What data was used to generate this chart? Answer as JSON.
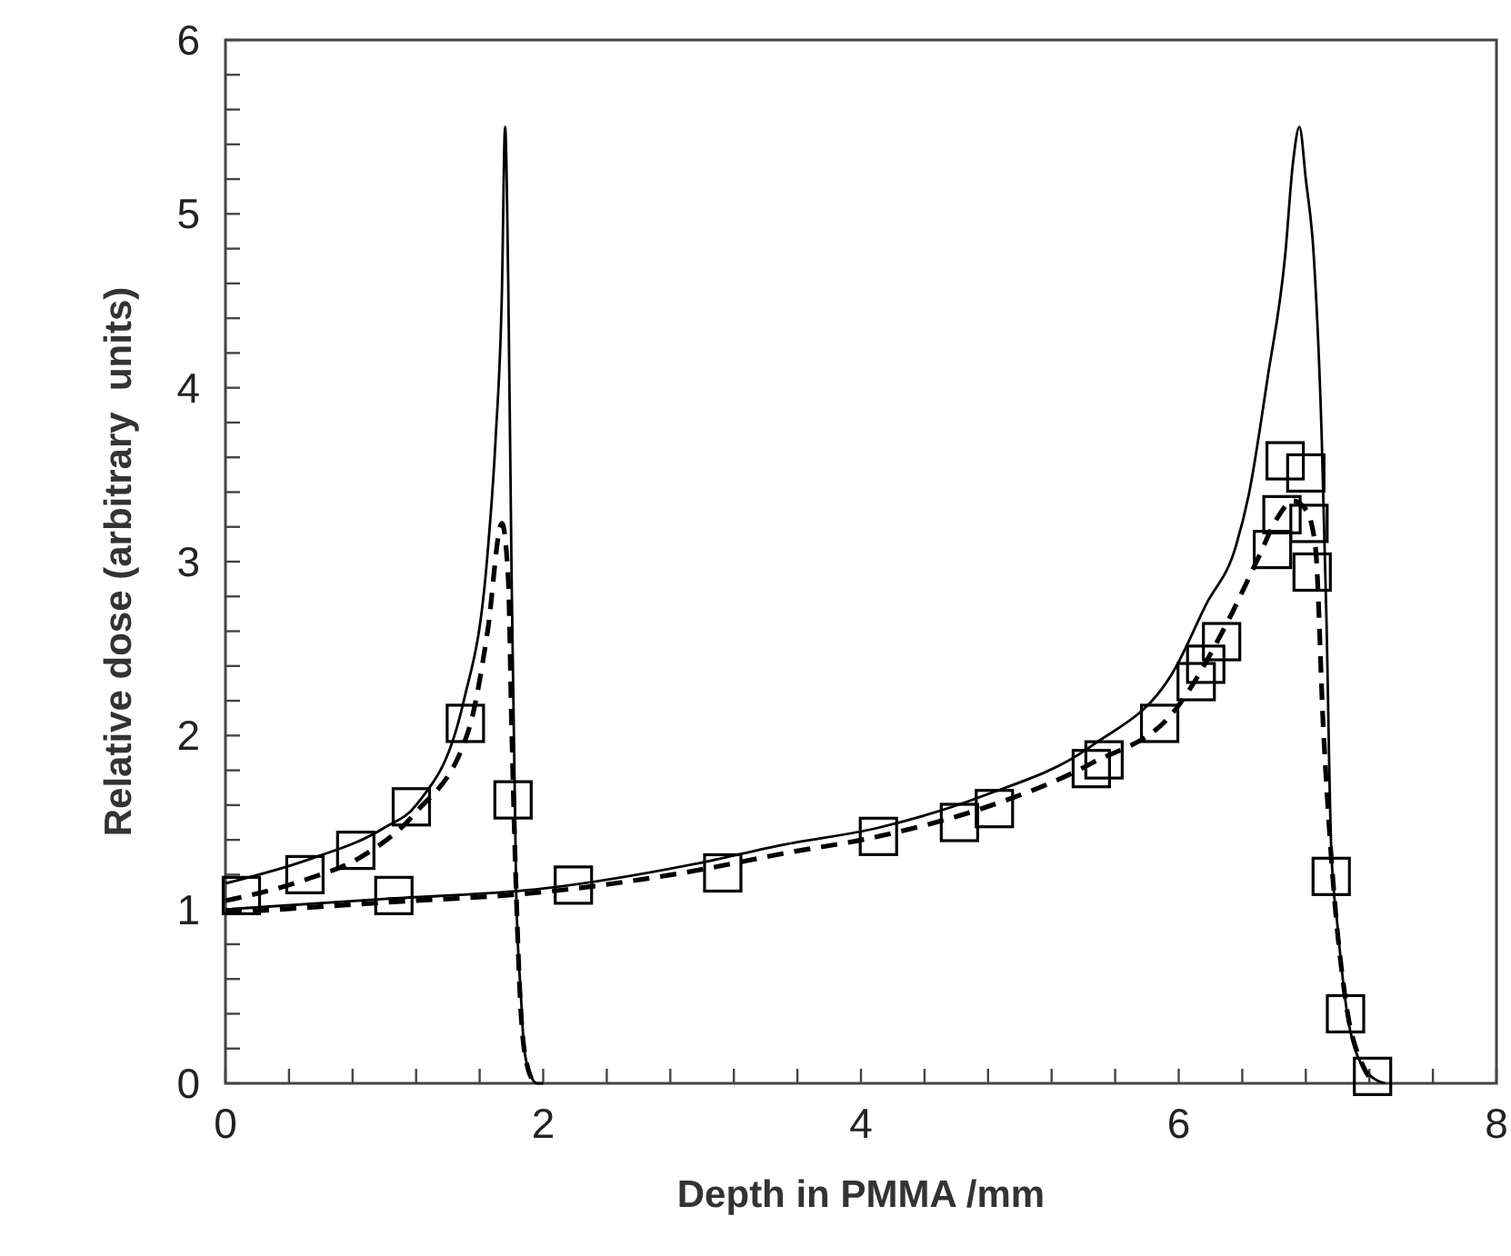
{
  "chart_data": {
    "type": "line",
    "xlabel": "Depth in PMMA /mm",
    "ylabel": "Relative dose (arbitrary  units)",
    "xlim": [
      0,
      8
    ],
    "ylim": [
      0,
      6
    ],
    "xticks": [
      0,
      {
        "value": 0.4,
        "label": null
      },
      {
        "value": 0.8,
        "label": null
      },
      {
        "value": 1.2,
        "label": null
      },
      {
        "value": 1.6,
        "label": null
      },
      2,
      {
        "value": 2.4,
        "label": null
      },
      {
        "value": 2.8,
        "label": null
      },
      {
        "value": 3.2,
        "label": null
      },
      {
        "value": 3.6,
        "label": null
      },
      4,
      {
        "value": 4.4,
        "label": null
      },
      {
        "value": 4.8,
        "label": null
      },
      {
        "value": 5.2,
        "label": null
      },
      {
        "value": 5.6,
        "label": null
      },
      6,
      {
        "value": 6.4,
        "label": null
      },
      {
        "value": 6.8,
        "label": null
      },
      {
        "value": 7.2,
        "label": null
      },
      {
        "value": 7.6,
        "label": null
      },
      8
    ],
    "yticks": [
      0,
      {
        "value": 0.2,
        "label": null
      },
      {
        "value": 0.4,
        "label": null
      },
      {
        "value": 0.6,
        "label": null
      },
      {
        "value": 0.8,
        "label": null
      },
      1,
      {
        "value": 1.2,
        "label": null
      },
      {
        "value": 1.4,
        "label": null
      },
      {
        "value": 1.6,
        "label": null
      },
      {
        "value": 1.8,
        "label": null
      },
      2,
      {
        "value": 2.2,
        "label": null
      },
      {
        "value": 2.4,
        "label": null
      },
      {
        "value": 2.6,
        "label": null
      },
      {
        "value": 2.8,
        "label": null
      },
      3,
      {
        "value": 3.2,
        "label": null
      },
      {
        "value": 3.4,
        "label": null
      },
      {
        "value": 3.6,
        "label": null
      },
      {
        "value": 3.8,
        "label": null
      },
      4,
      {
        "value": 4.2,
        "label": null
      },
      {
        "value": 4.4,
        "label": null
      },
      {
        "value": 4.6,
        "label": null
      },
      {
        "value": 4.8,
        "label": null
      },
      5,
      {
        "value": 5.2,
        "label": null
      },
      {
        "value": 5.4,
        "label": null
      },
      {
        "value": 5.6,
        "label": null
      },
      {
        "value": 5.8,
        "label": null
      },
      6
    ],
    "grid": false,
    "series": [
      {
        "color": "#000000",
        "line_style": "solid",
        "marker": "none",
        "x": [
          0,
          0.5,
          1.0,
          1.2,
          1.5,
          1.65,
          1.7,
          1.74,
          1.76,
          1.78,
          1.8,
          1.83,
          1.86,
          1.88,
          1.92,
          1.96,
          2.0
        ],
        "values": [
          1.15,
          1.28,
          1.47,
          1.6,
          2.2,
          3.05,
          3.7,
          4.55,
          5.5,
          4.6,
          3.0,
          1.1,
          0.5,
          0.2,
          0.05,
          0,
          0
        ]
      },
      {
        "color": "#000000",
        "line_style": "dashed",
        "marker": "none",
        "x": [
          0,
          0.5,
          0.85,
          1.19,
          1.53,
          1.65,
          1.74,
          1.78,
          1.8,
          1.83,
          1.86,
          1.9,
          1.95
        ],
        "values": [
          1.05,
          1.17,
          1.3,
          1.55,
          2.03,
          2.6,
          3.22,
          2.9,
          2.1,
          1.1,
          0.4,
          0.1,
          0
        ]
      },
      {
        "color": "#000000",
        "line_style": "solid",
        "marker": "none",
        "x": [
          0,
          1,
          2,
          3,
          3.5,
          4.11,
          4.76,
          5.45,
          5.98,
          6.17,
          6.36,
          6.44,
          6.56,
          6.67,
          6.72,
          6.76,
          6.8,
          6.85,
          6.9,
          6.93,
          6.96,
          7.0,
          7.08,
          7.2,
          7.3
        ],
        "values": [
          1.0,
          1.06,
          1.12,
          1.27,
          1.37,
          1.47,
          1.65,
          1.94,
          2.39,
          2.75,
          3.09,
          3.38,
          4.06,
          4.76,
          5.3,
          5.5,
          5.2,
          4.76,
          3.72,
          2.67,
          1.35,
          0.9,
          0.3,
          0.05,
          0
        ]
      },
      {
        "color": "#000000",
        "line_style": "dashed",
        "marker": "none",
        "x": [
          0,
          1,
          2,
          3,
          3.5,
          4.11,
          4.76,
          5.45,
          5.98,
          6.3,
          6.5,
          6.62,
          6.72,
          6.8,
          6.86,
          6.91,
          6.97,
          7.05,
          7.16,
          7.25
        ],
        "values": [
          0.98,
          1.04,
          1.1,
          1.23,
          1.32,
          1.42,
          1.58,
          1.84,
          2.15,
          2.64,
          3.02,
          3.25,
          3.35,
          3.3,
          3.09,
          2.05,
          1.18,
          0.48,
          0.1,
          0
        ]
      },
      {
        "type": "scatter",
        "color": "#000000",
        "marker": "square",
        "x": [
          0.1,
          0.5,
          0.82,
          1.17,
          1.51,
          1.81,
          1.06,
          2.19,
          3.13,
          4.11,
          4.62,
          4.84,
          5.45,
          5.53,
          5.88,
          6.11,
          6.17,
          6.27,
          6.59,
          6.65,
          6.67,
          6.8,
          6.82,
          6.84,
          6.96,
          7.05,
          7.22
        ],
        "values": [
          1.08,
          1.2,
          1.34,
          1.59,
          2.07,
          1.63,
          1.08,
          1.14,
          1.21,
          1.42,
          1.5,
          1.58,
          1.81,
          1.86,
          2.07,
          2.31,
          2.41,
          2.54,
          3.07,
          3.27,
          3.58,
          3.51,
          3.22,
          2.94,
          1.19,
          0.4,
          0.04
        ]
      }
    ]
  }
}
